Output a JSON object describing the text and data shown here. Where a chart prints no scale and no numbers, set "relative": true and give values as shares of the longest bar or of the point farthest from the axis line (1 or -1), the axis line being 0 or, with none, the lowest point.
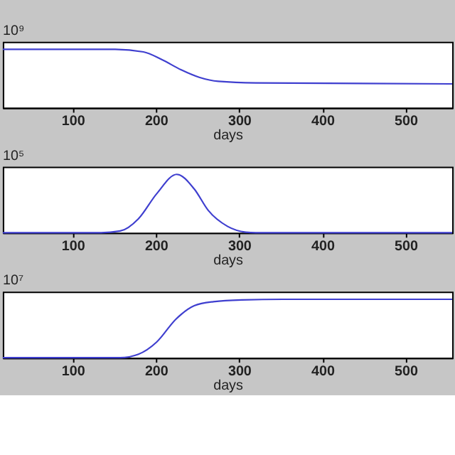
{
  "chart_data": [
    {
      "type": "line",
      "relative": true,
      "xlabel": "days",
      "annotations": [
        "10⁹"
      ],
      "xlim": [
        16,
        556
      ],
      "xticks": [
        100,
        200,
        300,
        400,
        500
      ],
      "grid": false,
      "marker": "none",
      "line_style": "solid",
      "series": [
        {
          "color": "#3f3fcf",
          "x": [
            16,
            151,
            185,
            207,
            230,
            252,
            275,
            320,
            556
          ],
          "values": [
            1,
            1,
            0.957,
            0.826,
            0.652,
            0.522,
            0.452,
            0.426,
            0.409
          ]
        }
      ]
    },
    {
      "type": "line",
      "relative": true,
      "xlabel": "days",
      "annotations": [
        "10⁵"
      ],
      "xlim": [
        16,
        556
      ],
      "xticks": [
        100,
        200,
        300,
        400,
        500
      ],
      "grid": false,
      "marker": "none",
      "line_style": "solid",
      "series": [
        {
          "color": "#3f3fcf",
          "x": [
            16,
            134,
            157,
            179,
            201,
            225,
            246,
            263,
            286,
            308,
            320,
            556
          ],
          "values": [
            0,
            0,
            0.03,
            0.24,
            0.67,
            1,
            0.75,
            0.38,
            0.11,
            0.01,
            0,
            0
          ]
        }
      ]
    },
    {
      "type": "line",
      "relative": true,
      "xlabel": "days",
      "annotations": [
        "10⁷"
      ],
      "xlim": [
        16,
        556
      ],
      "xticks": [
        100,
        200,
        300,
        400,
        500
      ],
      "grid": false,
      "marker": "none",
      "line_style": "solid",
      "series": [
        {
          "color": "#3f3fcf",
          "x": [
            16,
            157,
            179,
            201,
            224,
            246,
            269,
            303,
            353,
            556
          ],
          "values": [
            0,
            0,
            0.06,
            0.27,
            0.66,
            0.89,
            0.96,
            0.99,
            1,
            1
          ]
        }
      ]
    }
  ]
}
